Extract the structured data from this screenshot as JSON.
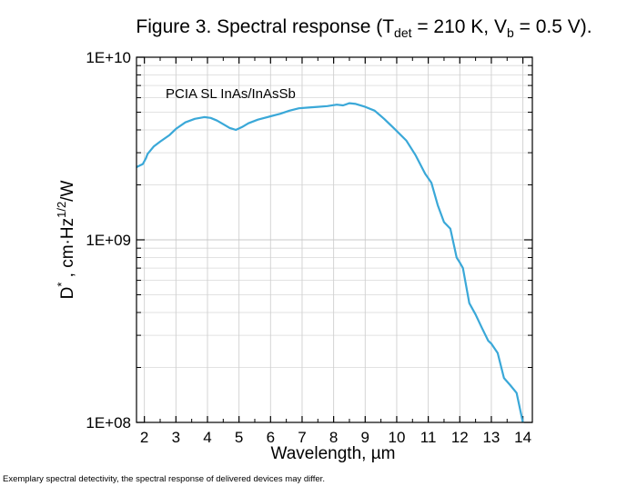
{
  "title": {
    "text": "Figure 3. Spectral response (T",
    "sub1": "det",
    "mid": " = 210 K, V",
    "sub2": "b",
    "end": " = 0.5 V)."
  },
  "footnote": "Exemplary spectral detectivity, the spectral response of delivered devices may differ.",
  "chart_data": {
    "type": "line",
    "xlabel": "Wavelength, µm",
    "ylabel": "D*, cm·Hz1/2/W",
    "ylabel_parts": {
      "main": "D",
      "sup1": "*",
      "mid": " , cm·Hz",
      "sup2": "1/2",
      "end": "/W"
    },
    "yscale": "log",
    "xlim": [
      1.75,
      14.3
    ],
    "ylim": [
      100000000,
      10000000000
    ],
    "xticks": [
      2,
      3,
      4,
      5,
      6,
      7,
      8,
      9,
      10,
      11,
      12,
      13,
      14
    ],
    "yticks": [
      100000000,
      1000000000,
      10000000000
    ],
    "ytick_labels": [
      "1E+08",
      "1E+09",
      "1E+10"
    ],
    "grid": true,
    "line_color": "#3aa8d8",
    "annotation": "PCIA SL InAs/InAsSb",
    "series": [
      {
        "x": [
          1.75,
          1.85,
          1.95,
          2.05,
          2.1,
          2.3,
          2.5,
          2.8,
          3.0,
          3.3,
          3.6,
          3.9,
          4.1,
          4.3,
          4.5,
          4.7,
          4.9,
          5.1,
          5.3,
          5.6,
          6.0,
          6.3,
          6.6,
          6.9,
          7.2,
          7.5,
          7.8,
          8.1,
          8.3,
          8.5,
          8.7,
          9.0,
          9.3,
          9.6,
          9.9,
          10.3,
          10.6,
          10.9,
          11.1,
          11.3,
          11.5,
          11.7,
          11.9,
          12.0,
          12.1,
          12.3,
          12.5,
          12.7,
          12.9,
          13.0,
          13.2,
          13.4,
          13.6,
          13.8,
          14.0
        ],
        "y": [
          2500000000,
          2550000000,
          2600000000,
          2800000000,
          2950000000,
          3250000000,
          3450000000,
          3750000000,
          4050000000,
          4400000000,
          4600000000,
          4700000000,
          4650000000,
          4500000000,
          4300000000,
          4100000000,
          4000000000,
          4150000000,
          4350000000,
          4550000000,
          4750000000,
          4900000000,
          5100000000,
          5250000000,
          5300000000,
          5350000000,
          5400000000,
          5500000000,
          5450000000,
          5600000000,
          5550000000,
          5350000000,
          5100000000,
          4600000000,
          4100000000,
          3500000000,
          2900000000,
          2300000000,
          2050000000,
          1550000000,
          1250000000,
          1150000000,
          800000000,
          750000000,
          700000000,
          450000000,
          390000000,
          330000000,
          280000000,
          270000000,
          240000000,
          175000000,
          160000000,
          145000000,
          95000000
        ]
      }
    ]
  }
}
